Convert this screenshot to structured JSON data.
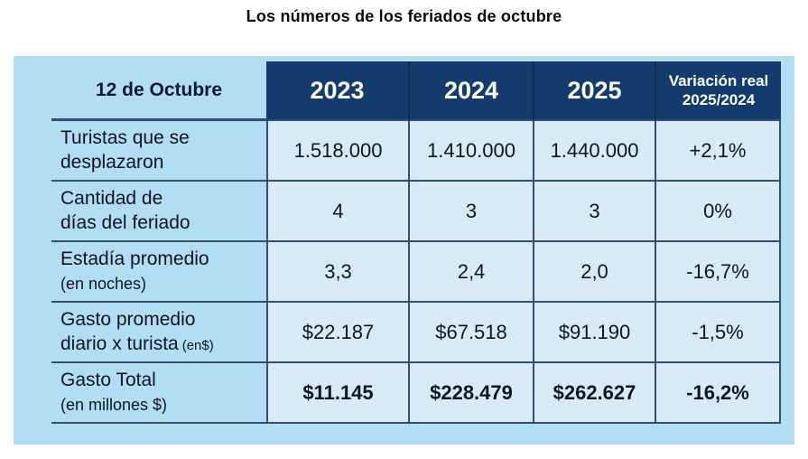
{
  "page": {
    "title": "Los números de los feriados de octubre"
  },
  "colors": {
    "header_navy": "#133c6d",
    "frame_blue": "#b3dcf5",
    "cell_blue": "#d9eaf7",
    "grid_line": "#31506f",
    "header_text": "#ffffff",
    "body_text": "#0e1520"
  },
  "table": {
    "corner_label": "12 de Octubre",
    "year_headers": [
      "2023",
      "2024",
      "2025"
    ],
    "variation_header": {
      "line1": "Variación real",
      "line2": "2025/2024"
    },
    "rows": [
      {
        "label_line1": "Turistas que se",
        "label_line2": "desplazaron",
        "label_note": "",
        "values": [
          "1.518.000",
          "1.410.000",
          "1.440.000"
        ],
        "variation": "+2,1%"
      },
      {
        "label_line1": "Cantidad de",
        "label_line2": "días del feriado",
        "label_note": "",
        "values": [
          "4",
          "3",
          "3"
        ],
        "variation": "0%"
      },
      {
        "label_line1": "Estadía promedio",
        "label_line2": "",
        "label_note": "(en noches)",
        "values": [
          "3,3",
          "2,4",
          "2,0"
        ],
        "variation": "-16,7%"
      },
      {
        "label_line1": "Gasto promedio",
        "label_line2": "diario x turista",
        "label_note": "(en$)",
        "values": [
          "$22.187",
          "$67.518",
          "$91.190"
        ],
        "variation": "-1,5%"
      },
      {
        "label_line1": "Gasto Total",
        "label_line2": "",
        "label_note": "(en millones $)",
        "values": [
          "$11.145",
          "$228.479",
          "$262.627"
        ],
        "variation": "-16,2%"
      }
    ]
  },
  "chart_data": {
    "type": "table",
    "title": "Los números de los feriados de octubre",
    "columns": [
      "12 de Octubre",
      "2023",
      "2024",
      "2025",
      "Variación real 2025/2024"
    ],
    "rows": [
      [
        "Turistas que se desplazaron",
        "1.518.000",
        "1.410.000",
        "1.440.000",
        "+2,1%"
      ],
      [
        "Cantidad de días del feriado",
        "4",
        "3",
        "3",
        "0%"
      ],
      [
        "Estadía promedio (en noches)",
        "3,3",
        "2,4",
        "2,0",
        "-16,7%"
      ],
      [
        "Gasto promedio diario x turista (en$)",
        "$22.187",
        "$67.518",
        "$91.190",
        "-1,5%"
      ],
      [
        "Gasto Total (en millones $)",
        "$11.145",
        "$228.479",
        "$262.627",
        "-16,2%"
      ]
    ]
  }
}
